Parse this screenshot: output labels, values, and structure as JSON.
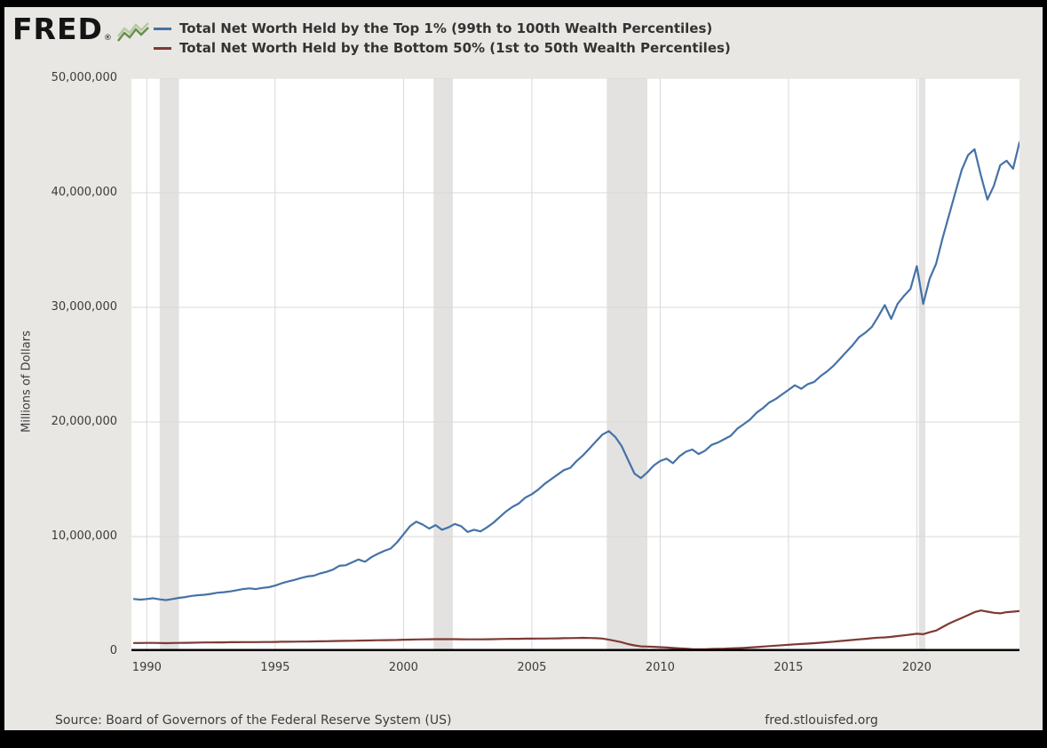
{
  "header": {
    "logo_text": "FRED",
    "logo_reg": "®"
  },
  "legend": {
    "items": [
      {
        "label": "Total Net Worth Held by the Top 1% (99th to 100th Wealth Percentiles)",
        "color": "#4572a7"
      },
      {
        "label": "Total Net Worth Held by the Bottom 50% (1st to 50th Wealth Percentiles)",
        "color": "#7e3a33"
      }
    ]
  },
  "axes": {
    "ylabel": "Millions of Dollars"
  },
  "footer": {
    "source": "Source: Board of Governors of the Federal Reserve System (US)",
    "site": "fred.stlouisfed.org"
  },
  "chart_data": {
    "type": "line",
    "title": "",
    "xlabel": "",
    "ylabel": "Millions of Dollars",
    "xlim": [
      1989.4,
      2024.0
    ],
    "ylim": [
      0,
      50000000
    ],
    "grid": true,
    "legend_position": "top-left",
    "yticks": [
      {
        "value": 0,
        "label": "0"
      },
      {
        "value": 10000000,
        "label": "10,000,000"
      },
      {
        "value": 20000000,
        "label": "20,000,000"
      },
      {
        "value": 30000000,
        "label": "30,000,000"
      },
      {
        "value": 40000000,
        "label": "40,000,000"
      },
      {
        "value": 50000000,
        "label": "50,000,000"
      }
    ],
    "xticks": [
      {
        "value": 1990,
        "label": "1990"
      },
      {
        "value": 1995,
        "label": "1995"
      },
      {
        "value": 2000,
        "label": "2000"
      },
      {
        "value": 2005,
        "label": "2005"
      },
      {
        "value": 2010,
        "label": "2010"
      },
      {
        "value": 2015,
        "label": "2015"
      },
      {
        "value": 2020,
        "label": "2020"
      }
    ],
    "recessions": [
      [
        1990.5,
        1991.25
      ],
      [
        2001.17,
        2001.92
      ],
      [
        2007.92,
        2009.5
      ],
      [
        2020.08,
        2020.33
      ]
    ],
    "colors": {
      "recession": "#e3e2e0",
      "grid": "#d8d8d8",
      "axis": "#000000",
      "plot_bg": "#ffffff",
      "page_bg": "#e8e7e4"
    },
    "x": [
      1989.5,
      1989.75,
      1990,
      1990.25,
      1990.5,
      1990.75,
      1991,
      1991.25,
      1991.5,
      1991.75,
      1992,
      1992.25,
      1992.5,
      1992.75,
      1993,
      1993.25,
      1993.5,
      1993.75,
      1994,
      1994.25,
      1994.5,
      1994.75,
      1995,
      1995.25,
      1995.5,
      1995.75,
      1996,
      1996.25,
      1996.5,
      1996.75,
      1997,
      1997.25,
      1997.5,
      1997.75,
      1998,
      1998.25,
      1998.5,
      1998.75,
      1999,
      1999.25,
      1999.5,
      1999.75,
      2000,
      2000.25,
      2000.5,
      2000.75,
      2001,
      2001.25,
      2001.5,
      2001.75,
      2002,
      2002.25,
      2002.5,
      2002.75,
      2003,
      2003.25,
      2003.5,
      2003.75,
      2004,
      2004.25,
      2004.5,
      2004.75,
      2005,
      2005.25,
      2005.5,
      2005.75,
      2006,
      2006.25,
      2006.5,
      2006.75,
      2007,
      2007.25,
      2007.5,
      2007.75,
      2008,
      2008.25,
      2008.5,
      2008.75,
      2009,
      2009.25,
      2009.5,
      2009.75,
      2010,
      2010.25,
      2010.5,
      2010.75,
      2011,
      2011.25,
      2011.5,
      2011.75,
      2012,
      2012.25,
      2012.5,
      2012.75,
      2013,
      2013.25,
      2013.5,
      2013.75,
      2014,
      2014.25,
      2014.5,
      2014.75,
      2015,
      2015.25,
      2015.5,
      2015.75,
      2016,
      2016.25,
      2016.5,
      2016.75,
      2017,
      2017.25,
      2017.5,
      2017.75,
      2018,
      2018.25,
      2018.5,
      2018.75,
      2019,
      2019.25,
      2019.5,
      2019.75,
      2020,
      2020.25,
      2020.5,
      2020.75,
      2021,
      2021.25,
      2021.5,
      2021.75,
      2022,
      2022.25,
      2022.5,
      2022.75,
      2023,
      2023.25,
      2023.5,
      2023.75,
      2024
    ],
    "series": [
      {
        "name": "Total Net Worth Held by the Top 1% (99th to 100th Wealth Percentiles)",
        "color": "#4572a7",
        "values": [
          4550000,
          4500000,
          4550000,
          4620000,
          4520000,
          4460000,
          4550000,
          4650000,
          4720000,
          4820000,
          4880000,
          4920000,
          5000000,
          5100000,
          5150000,
          5220000,
          5320000,
          5420000,
          5480000,
          5420000,
          5520000,
          5580000,
          5720000,
          5920000,
          6080000,
          6220000,
          6380000,
          6520000,
          6580000,
          6780000,
          6920000,
          7120000,
          7450000,
          7500000,
          7750000,
          8000000,
          7800000,
          8200000,
          8500000,
          8750000,
          8950000,
          9500000,
          10200000,
          10900000,
          11300000,
          11050000,
          10700000,
          11000000,
          10600000,
          10800000,
          11100000,
          10900000,
          10400000,
          10600000,
          10450000,
          10800000,
          11200000,
          11700000,
          12200000,
          12600000,
          12900000,
          13400000,
          13700000,
          14100000,
          14600000,
          15000000,
          15400000,
          15800000,
          16000000,
          16600000,
          17100000,
          17700000,
          18300000,
          18900000,
          19200000,
          18700000,
          17900000,
          16700000,
          15500000,
          15100000,
          15600000,
          16200000,
          16600000,
          16800000,
          16400000,
          17000000,
          17400000,
          17600000,
          17200000,
          17500000,
          18000000,
          18200000,
          18500000,
          18800000,
          19400000,
          19800000,
          20200000,
          20800000,
          21200000,
          21700000,
          22000000,
          22400000,
          22800000,
          23200000,
          22900000,
          23300000,
          23500000,
          24000000,
          24400000,
          24900000,
          25500000,
          26100000,
          26700000,
          27400000,
          27800000,
          28300000,
          29200000,
          30200000,
          29000000,
          30300000,
          31000000,
          31600000,
          33600000,
          30300000,
          32500000,
          33800000,
          36000000,
          38000000,
          40000000,
          42000000,
          43300000,
          43800000,
          41500000,
          39400000,
          40600000,
          42400000,
          42800000,
          42100000,
          44400000
        ]
      },
      {
        "name": "Total Net Worth Held by the Bottom 50% (1st to 50th Wealth Percentiles)",
        "color": "#7e3a33",
        "values": [
          710000,
          710000,
          720000,
          720000,
          710000,
          700000,
          710000,
          720000,
          730000,
          740000,
          750000,
          760000,
          760000,
          770000,
          770000,
          780000,
          780000,
          790000,
          790000,
          790000,
          800000,
          800000,
          810000,
          820000,
          820000,
          830000,
          840000,
          840000,
          850000,
          860000,
          870000,
          880000,
          890000,
          900000,
          910000,
          920000,
          930000,
          940000,
          950000,
          960000,
          970000,
          980000,
          1000000,
          1010000,
          1020000,
          1030000,
          1040000,
          1050000,
          1050000,
          1050000,
          1050000,
          1040000,
          1030000,
          1030000,
          1030000,
          1040000,
          1050000,
          1060000,
          1070000,
          1080000,
          1080000,
          1090000,
          1090000,
          1100000,
          1100000,
          1110000,
          1120000,
          1130000,
          1140000,
          1150000,
          1160000,
          1150000,
          1130000,
          1100000,
          1000000,
          900000,
          780000,
          620000,
          500000,
          420000,
          400000,
          380000,
          350000,
          320000,
          280000,
          250000,
          220000,
          180000,
          160000,
          170000,
          190000,
          210000,
          220000,
          240000,
          260000,
          290000,
          320000,
          360000,
          400000,
          440000,
          480000,
          520000,
          560000,
          600000,
          630000,
          660000,
          700000,
          740000,
          780000,
          830000,
          880000,
          930000,
          980000,
          1030000,
          1080000,
          1130000,
          1180000,
          1200000,
          1250000,
          1320000,
          1380000,
          1450000,
          1520000,
          1480000,
          1650000,
          1800000,
          2100000,
          2400000,
          2650000,
          2900000,
          3150000,
          3400000,
          3550000,
          3450000,
          3350000,
          3300000,
          3400000,
          3450000,
          3500000
        ]
      }
    ]
  }
}
